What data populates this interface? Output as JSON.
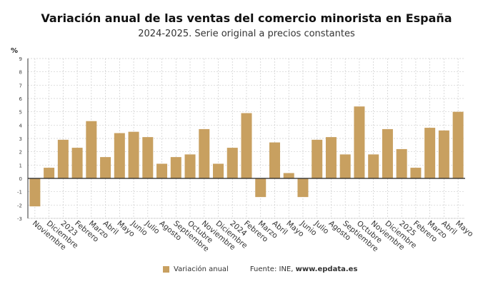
{
  "chart_data": {
    "type": "bar",
    "title": "Variación anual de las ventas del comercio minorista en España",
    "subtitle": "2024-2025. Serie original a precios constantes",
    "ylabel": "%",
    "ylim": [
      -3,
      9
    ],
    "yticks": [
      "-3",
      "-2",
      "-1",
      "0",
      "1",
      "2",
      "3",
      "4",
      "5",
      "6",
      "7",
      "8",
      "9"
    ],
    "grid": true,
    "legend_position": "bottom",
    "bar_color": "#c8a060",
    "categories": [
      "Noviembre",
      "Diciembre",
      "2023",
      "Febrero",
      "Marzo",
      "Abril",
      "Mayo",
      "Junio",
      "Julio",
      "Agosto",
      "Septiembre",
      "Octubre",
      "Noviembre",
      "Diciembre",
      "2024",
      "Febrero",
      "Marzo",
      "Abril",
      "Mayo",
      "Junio",
      "Julio",
      "Agosto",
      "Septiembre",
      "Octubre",
      "Noviembre",
      "Diciembre",
      "2025",
      "Febrero",
      "Marzo",
      "Abril",
      "Mayo"
    ],
    "series": [
      {
        "name": "Variación anual",
        "values": [
          -2.1,
          0.8,
          2.9,
          2.3,
          4.3,
          1.6,
          3.4,
          3.5,
          3.1,
          1.1,
          1.6,
          1.8,
          3.7,
          1.1,
          2.3,
          4.9,
          -1.4,
          2.7,
          0.4,
          -1.4,
          2.9,
          3.1,
          1.8,
          5.4,
          1.8,
          3.7,
          2.2,
          0.8,
          3.8,
          3.6,
          5.0
        ]
      }
    ]
  },
  "legend": {
    "series": "Variación anual",
    "source_prefix": "Fuente: INE, ",
    "source_site": "www.epdata.es"
  }
}
